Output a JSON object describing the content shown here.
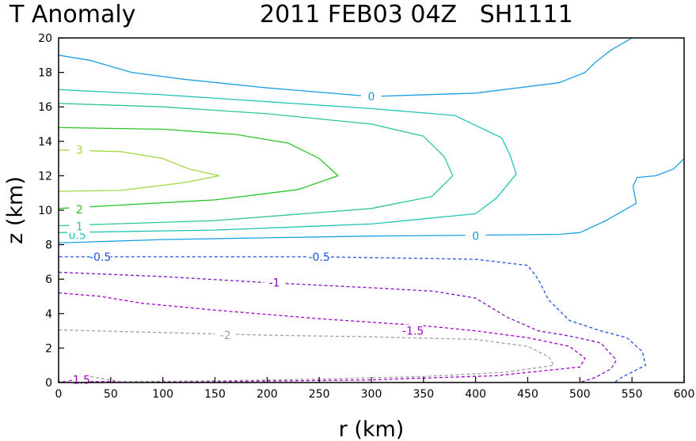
{
  "chart_data": {
    "type": "line",
    "title_left": "T Anomaly",
    "title_right": "2011 FEB03 04Z   SH1111",
    "xlabel": "r (km)",
    "ylabel": "z (km)",
    "xlim": [
      0,
      600
    ],
    "ylim": [
      0,
      20
    ],
    "xticks": [
      "0",
      "50",
      "100",
      "150",
      "200",
      "250",
      "300",
      "350",
      "400",
      "450",
      "500",
      "550",
      "600"
    ],
    "yticks": [
      "0",
      "2",
      "4",
      "6",
      "8",
      "10",
      "12",
      "14",
      "16",
      "18",
      "20"
    ],
    "grid": false,
    "contours": [
      {
        "level": "0",
        "color": "#1aa0e0",
        "dashed": false,
        "labels": [
          {
            "text": "0",
            "x": 300,
            "y": 16.6
          }
        ],
        "points": [
          [
            0,
            19
          ],
          [
            30,
            18.7
          ],
          [
            70,
            18
          ],
          [
            120,
            17.6
          ],
          [
            200,
            17.1
          ],
          [
            300,
            16.6
          ],
          [
            400,
            16.8
          ],
          [
            480,
            17.4
          ],
          [
            505,
            18
          ],
          [
            515,
            18.6
          ],
          [
            530,
            19.3
          ],
          [
            550,
            20
          ]
        ]
      },
      {
        "level": "0",
        "color": "#1aa0e0",
        "dashed": false,
        "labels": [
          {
            "text": "0",
            "x": 400,
            "y": 8.5
          }
        ],
        "points": [
          [
            0,
            8.1
          ],
          [
            100,
            8.3
          ],
          [
            200,
            8.4
          ],
          [
            300,
            8.5
          ],
          [
            400,
            8.55
          ],
          [
            480,
            8.6
          ],
          [
            500,
            8.7
          ],
          [
            525,
            9.4
          ],
          [
            554,
            10.4
          ],
          [
            551,
            11.4
          ],
          [
            555,
            11.9
          ],
          [
            573,
            12
          ],
          [
            590,
            12.4
          ],
          [
            600,
            13
          ]
        ]
      },
      {
        "level": "0.5",
        "color": "#20c4b4",
        "dashed": false,
        "labels": [
          {
            "text": "0.5",
            "x": 18,
            "y": 8.55
          }
        ],
        "points": [
          [
            0,
            17
          ],
          [
            100,
            16.7
          ],
          [
            200,
            16.3
          ],
          [
            300,
            15.9
          ],
          [
            380,
            15.5
          ],
          [
            425,
            14.2
          ],
          [
            433,
            13.2
          ],
          [
            439,
            12.1
          ],
          [
            420,
            10.7
          ],
          [
            400,
            9.8
          ],
          [
            300,
            9.2
          ],
          [
            150,
            8.85
          ],
          [
            0,
            8.7
          ]
        ]
      },
      {
        "level": "1",
        "color": "#2cc88c",
        "dashed": false,
        "labels": [
          {
            "text": "1",
            "x": 20,
            "y": 9.05
          }
        ],
        "points": [
          [
            0,
            16.2
          ],
          [
            100,
            16
          ],
          [
            200,
            15.6
          ],
          [
            300,
            15
          ],
          [
            350,
            14.3
          ],
          [
            370,
            13.1
          ],
          [
            378,
            12
          ],
          [
            358,
            10.8
          ],
          [
            300,
            10.1
          ],
          [
            150,
            9.4
          ],
          [
            0,
            9.1
          ]
        ]
      },
      {
        "level": "2",
        "color": "#28c428",
        "dashed": false,
        "labels": [
          {
            "text": "2",
            "x": 20,
            "y": 10.05
          }
        ],
        "points": [
          [
            0,
            14.8
          ],
          [
            100,
            14.7
          ],
          [
            170,
            14.4
          ],
          [
            220,
            13.9
          ],
          [
            250,
            13
          ],
          [
            268,
            12
          ],
          [
            230,
            11.2
          ],
          [
            150,
            10.6
          ],
          [
            0,
            10.1
          ]
        ]
      },
      {
        "level": "3",
        "color": "#a0d840",
        "dashed": false,
        "labels": [
          {
            "text": "3",
            "x": 20,
            "y": 13.5
          }
        ],
        "points": [
          [
            0,
            13.5
          ],
          [
            60,
            13.4
          ],
          [
            100,
            13
          ],
          [
            125,
            12.4
          ],
          [
            154,
            12
          ],
          [
            120,
            11.6
          ],
          [
            60,
            11.15
          ],
          [
            0,
            11.1
          ]
        ]
      },
      {
        "level": "-0.5",
        "color": "#2050e0",
        "dashed": true,
        "labels": [
          {
            "text": "-0.5",
            "x": 40,
            "y": 7.3
          },
          {
            "text": "-0.5",
            "x": 250,
            "y": 7.3
          }
        ],
        "points": [
          [
            -10,
            7.3
          ],
          [
            100,
            7.3
          ],
          [
            250,
            7.3
          ],
          [
            400,
            7.15
          ],
          [
            450,
            6.8
          ],
          [
            460,
            6
          ],
          [
            470,
            4.8
          ],
          [
            490,
            3.6
          ],
          [
            520,
            3
          ],
          [
            545,
            2.6
          ],
          [
            560,
            1.8
          ],
          [
            563,
            1
          ],
          [
            540,
            0.3
          ],
          [
            533,
            0
          ]
        ]
      },
      {
        "level": "-1",
        "color": "#8010c0",
        "dashed": true,
        "labels": [
          {
            "text": "-1",
            "x": 207,
            "y": 5.8
          }
        ],
        "points": [
          [
            0,
            6.4
          ],
          [
            100,
            6.15
          ],
          [
            200,
            5.8
          ],
          [
            300,
            5.5
          ],
          [
            360,
            5.3
          ],
          [
            400,
            4.9
          ],
          [
            430,
            3.8
          ],
          [
            460,
            3
          ],
          [
            490,
            2.7
          ],
          [
            520,
            2.3
          ],
          [
            535,
            1.3
          ],
          [
            530,
            0.8
          ],
          [
            515,
            0.3
          ],
          [
            500,
            0
          ]
        ]
      },
      {
        "level": "-1.5",
        "color": "#a000c8",
        "dashed": true,
        "labels": [
          {
            "text": "-1.5",
            "x": 340,
            "y": 3.0
          },
          {
            "text": "-1.5",
            "x": 20,
            "y": 0.15
          }
        ],
        "points": [
          [
            0,
            5.2
          ],
          [
            40,
            5
          ],
          [
            80,
            4.6
          ],
          [
            150,
            4.2
          ],
          [
            250,
            3.7
          ],
          [
            350,
            3.3
          ],
          [
            400,
            3
          ],
          [
            450,
            2.6
          ],
          [
            490,
            2.1
          ],
          [
            505,
            1.4
          ],
          [
            500,
            0.9
          ],
          [
            420,
            0.4
          ],
          [
            300,
            0.15
          ],
          [
            150,
            0.05
          ],
          [
            30,
            0.05
          ],
          [
            0,
            0.05
          ]
        ]
      },
      {
        "level": "-2",
        "color": "#a0a0a0",
        "dashed": true,
        "labels": [
          {
            "text": "-2",
            "x": 160,
            "y": 2.75
          }
        ],
        "points": [
          [
            0,
            3.05
          ],
          [
            100,
            2.9
          ],
          [
            200,
            2.75
          ],
          [
            300,
            2.65
          ],
          [
            400,
            2.5
          ],
          [
            450,
            2.1
          ],
          [
            470,
            1.5
          ],
          [
            475,
            1.0
          ],
          [
            430,
            0.6
          ],
          [
            350,
            0.35
          ],
          [
            250,
            0.2
          ],
          [
            150,
            0.1
          ],
          [
            60,
            0.05
          ],
          [
            30,
            0.35
          ],
          [
            20,
            0.25
          ]
        ]
      }
    ]
  }
}
